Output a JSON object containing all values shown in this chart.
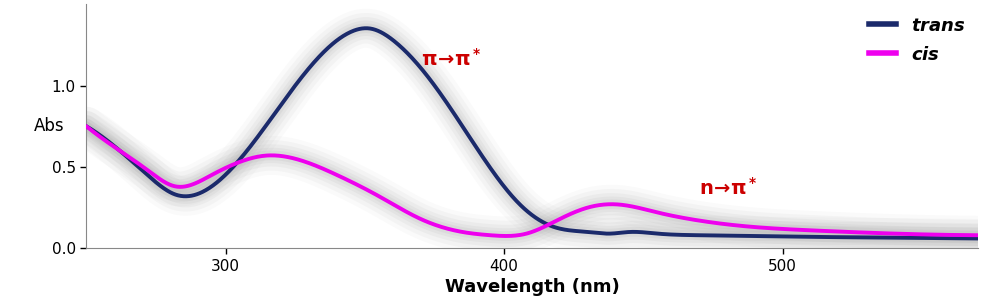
{
  "x_min": 250,
  "x_max": 570,
  "y_min": 0,
  "y_max": 1.5,
  "xlabel": "Wavelength (nm)",
  "ylabel": "Abs",
  "yticks": [
    0,
    0.5,
    1
  ],
  "xticks": [
    300,
    400,
    500
  ],
  "trans_color": "#1b2a6b",
  "cis_color": "#ee00ee",
  "annotation_color": "#cc0000",
  "legend_trans": "trans",
  "legend_cis": "cis",
  "background_color": "#ffffff",
  "trans_x": [
    250,
    262,
    272,
    282,
    295,
    310,
    325,
    338,
    345,
    352,
    360,
    375,
    390,
    405,
    418,
    430,
    438,
    445,
    455,
    470,
    490,
    510,
    540,
    570
  ],
  "trans_y": [
    0.75,
    0.6,
    0.45,
    0.33,
    0.38,
    0.65,
    1.0,
    1.25,
    1.33,
    1.35,
    1.28,
    1.0,
    0.62,
    0.28,
    0.13,
    0.1,
    0.09,
    0.1,
    0.09,
    0.08,
    0.075,
    0.07,
    0.065,
    0.06
  ],
  "cis_x": [
    250,
    262,
    272,
    282,
    295,
    305,
    315,
    325,
    340,
    355,
    370,
    385,
    395,
    408,
    420,
    430,
    440,
    455,
    470,
    490,
    510,
    540,
    570
  ],
  "cis_y": [
    0.75,
    0.6,
    0.48,
    0.38,
    0.45,
    0.53,
    0.57,
    0.55,
    0.45,
    0.32,
    0.18,
    0.1,
    0.08,
    0.09,
    0.18,
    0.25,
    0.27,
    0.22,
    0.17,
    0.13,
    0.11,
    0.09,
    0.08
  ]
}
